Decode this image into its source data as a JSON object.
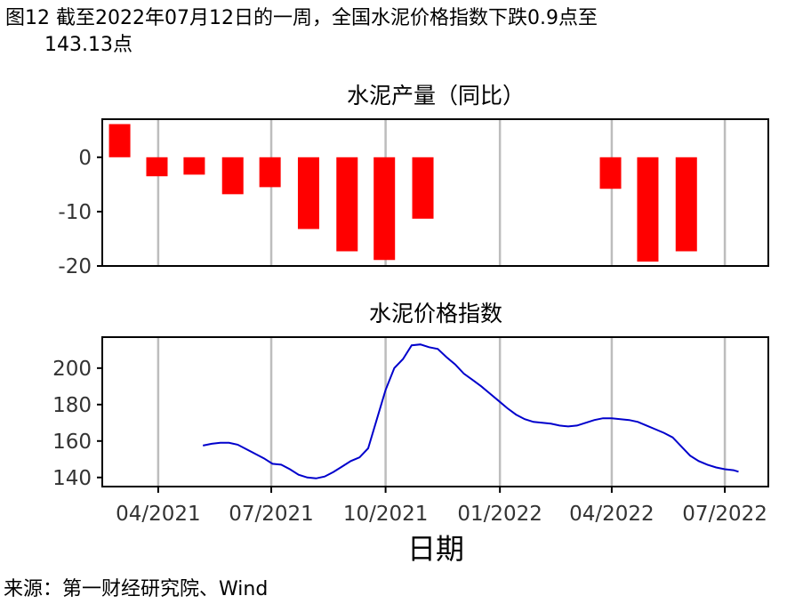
{
  "figure": {
    "title_line1": "图12  截至2022年07月12日的一周，全国水泥价格指数下跌0.9点至",
    "title_line2": "143.13点",
    "source": "来源：第一财经研究院、Wind",
    "xlabel": "日期"
  },
  "chart_data": [
    {
      "type": "bar",
      "title": "水泥产量（同比）",
      "ylim": [
        -20,
        7
      ],
      "yticks": [
        0,
        -10,
        -20
      ],
      "x_range": [
        "2021-02-15",
        "2022-08-05"
      ],
      "x": [
        "2021-03-01",
        "2021-03-31",
        "2021-04-30",
        "2021-05-31",
        "2021-06-30",
        "2021-07-31",
        "2021-08-31",
        "2021-09-30",
        "2021-10-31",
        "2021-12-31",
        "2022-01-31",
        "2022-02-28",
        "2022-03-31",
        "2022-04-30",
        "2022-05-31",
        "2022-06-30"
      ],
      "values": [
        6.1,
        -3.5,
        -3.2,
        -6.8,
        -5.5,
        -13.2,
        -17.3,
        -18.9,
        -11.3,
        null,
        null,
        null,
        -5.8,
        -19.2,
        -17.3,
        null
      ],
      "color": "#ff0000",
      "grid": "vertical"
    },
    {
      "type": "line",
      "title": "水泥价格指数",
      "ylim": [
        135,
        217
      ],
      "yticks": [
        200,
        180,
        160,
        140
      ],
      "x_range": [
        "2021-02-15",
        "2022-08-05"
      ],
      "xticks": [
        "04/2021",
        "07/2021",
        "10/2021",
        "01/2022",
        "04/2022",
        "07/2022"
      ],
      "xtick_dates": [
        "2021-04-01",
        "2021-07-01",
        "2021-10-01",
        "2022-01-01",
        "2022-04-01",
        "2022-07-01"
      ],
      "color": "#0000cc",
      "grid": "vertical",
      "x": [
        "2021-05-07",
        "2021-05-14",
        "2021-05-21",
        "2021-05-28",
        "2021-06-04",
        "2021-06-11",
        "2021-06-18",
        "2021-06-25",
        "2021-07-02",
        "2021-07-09",
        "2021-07-16",
        "2021-07-23",
        "2021-07-30",
        "2021-08-06",
        "2021-08-13",
        "2021-08-20",
        "2021-08-27",
        "2021-09-03",
        "2021-09-10",
        "2021-09-17",
        "2021-09-24",
        "2021-10-01",
        "2021-10-08",
        "2021-10-15",
        "2021-10-22",
        "2021-10-29",
        "2021-11-05",
        "2021-11-12",
        "2021-11-19",
        "2021-11-26",
        "2021-12-03",
        "2021-12-10",
        "2021-12-17",
        "2021-12-24",
        "2021-12-31",
        "2022-01-07",
        "2022-01-14",
        "2022-01-21",
        "2022-01-28",
        "2022-02-04",
        "2022-02-11",
        "2022-02-18",
        "2022-02-25",
        "2022-03-04",
        "2022-03-11",
        "2022-03-18",
        "2022-03-25",
        "2022-04-01",
        "2022-04-08",
        "2022-04-15",
        "2022-04-22",
        "2022-04-29",
        "2022-05-06",
        "2022-05-13",
        "2022-05-20",
        "2022-05-27",
        "2022-06-03",
        "2022-06-10",
        "2022-06-17",
        "2022-06-24",
        "2022-07-01",
        "2022-07-08",
        "2022-07-12"
      ],
      "values": [
        157.5,
        158.5,
        159.0,
        159.0,
        158.0,
        155.5,
        153.0,
        150.5,
        147.5,
        147.0,
        144.5,
        141.5,
        140.0,
        139.5,
        140.5,
        143.0,
        146.0,
        149.0,
        151.0,
        156.0,
        172.0,
        188.0,
        200.0,
        205.0,
        212.5,
        213.0,
        211.5,
        210.5,
        206.0,
        202.0,
        197.0,
        193.5,
        190.0,
        186.0,
        182.0,
        178.0,
        174.5,
        172.0,
        170.5,
        170.0,
        169.5,
        168.5,
        168.0,
        168.5,
        170.0,
        171.5,
        172.5,
        172.5,
        172.0,
        171.5,
        170.5,
        168.5,
        166.5,
        164.5,
        162.0,
        157.0,
        152.0,
        149.0,
        147.0,
        145.5,
        144.5,
        144.0,
        143.13
      ]
    }
  ]
}
